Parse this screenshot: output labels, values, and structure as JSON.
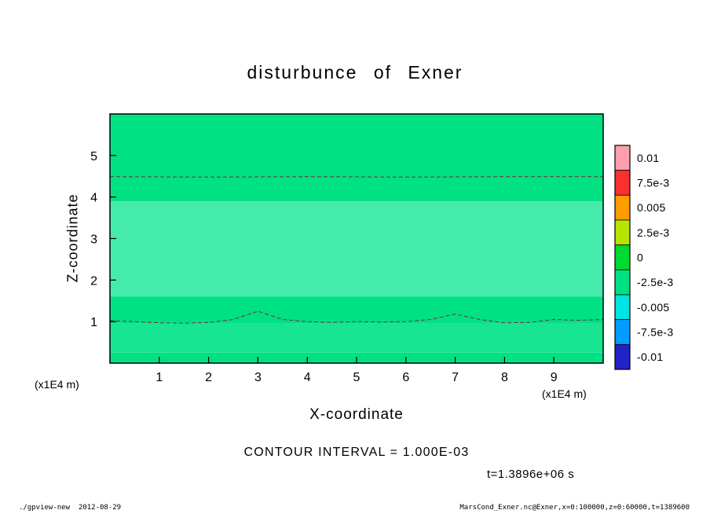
{
  "page": {
    "title": "disturbunce of Exner",
    "contour_interval": "CONTOUR INTERVAL = 1.000E-03",
    "time_label": "t=1.3896e+06 s",
    "footer_left": "./gpview-new  2012-08-29",
    "footer_right": "MarsCond_Exner.nc@Exner,x=0:100000,z=0:60000,t=1389600"
  },
  "axes": {
    "xlabel": "X-coordinate",
    "ylabel": "Z-coordinate",
    "x_unit": "(x1E4 m)",
    "z_unit": "(x1E4 m)"
  },
  "chart_data": {
    "type": "heatmap",
    "subtype": "shaded-contour",
    "title": "disturbunce of Exner",
    "xlabel": "X-coordinate",
    "ylabel": "Z-coordinate",
    "xlim": [
      0,
      10
    ],
    "zlim": [
      0,
      6
    ],
    "x_ticks": [
      1,
      2,
      3,
      4,
      5,
      6,
      7,
      8,
      9
    ],
    "z_ticks": [
      1,
      2,
      3,
      4,
      5
    ],
    "contour_interval": 0.001,
    "contour_line_color": "#7a2a2a",
    "shaded_bands": [
      {
        "z_from": 0.0,
        "z_to": 0.25,
        "value": -0.001,
        "color": "#00e183"
      },
      {
        "z_from": 0.25,
        "z_to": 0.95,
        "value": -0.0008,
        "color": "#18e591"
      },
      {
        "z_from": 0.95,
        "z_to": 1.6,
        "value": -0.001,
        "color": "#00e183"
      },
      {
        "z_from": 1.6,
        "z_to": 3.9,
        "value": -0.0005,
        "color": "#44ebaa"
      },
      {
        "z_from": 3.9,
        "z_to": 6.0,
        "value": -0.001,
        "color": "#00e183"
      }
    ],
    "contour_lines": [
      {
        "value": -0.001,
        "style": "dashed",
        "points": [
          [
            0,
            4.49
          ],
          [
            2,
            4.48
          ],
          [
            4,
            4.49
          ],
          [
            6,
            4.48
          ],
          [
            8,
            4.49
          ],
          [
            10,
            4.49
          ]
        ]
      },
      {
        "value": -0.001,
        "style": "dashed",
        "points": [
          [
            0,
            1.02
          ],
          [
            0.5,
            1.0
          ],
          [
            1,
            0.97
          ],
          [
            1.5,
            0.96
          ],
          [
            2,
            0.98
          ],
          [
            2.5,
            1.05
          ],
          [
            3,
            1.25
          ],
          [
            3.5,
            1.05
          ],
          [
            4,
            1.0
          ],
          [
            4.5,
            0.98
          ],
          [
            5,
            1.0
          ],
          [
            5.5,
            0.99
          ],
          [
            6,
            1.0
          ],
          [
            6.5,
            1.05
          ],
          [
            7,
            1.18
          ],
          [
            7.5,
            1.05
          ],
          [
            8,
            0.97
          ],
          [
            8.5,
            0.98
          ],
          [
            9,
            1.05
          ],
          [
            9.5,
            1.03
          ],
          [
            10,
            1.05
          ]
        ]
      }
    ],
    "colorbar": {
      "labels": [
        "0.01",
        "7.5e-3",
        "0.005",
        "2.5e-3",
        "0",
        "-2.5e-3",
        "-0.005",
        "-7.5e-3",
        "-0.01"
      ],
      "values": [
        0.01,
        0.0075,
        0.005,
        0.0025,
        0,
        -0.0025,
        -0.005,
        -0.0075,
        -0.01
      ],
      "colors": [
        "#ff9fae",
        "#f83030",
        "#ff9c00",
        "#b8e400",
        "#00d930",
        "#00e183",
        "#00e4e4",
        "#009cff",
        "#2222c8"
      ]
    },
    "legend_position": "right",
    "grid": false
  }
}
